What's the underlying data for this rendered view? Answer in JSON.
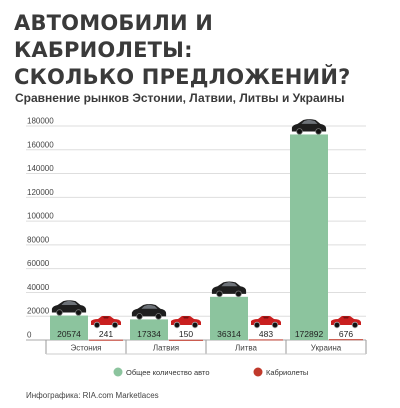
{
  "header": {
    "title_line1": "АВТОМОБИЛИ И КАБРИОЛЕТЫ:",
    "title_line2": "СКОЛЬКО ПРЕДЛОЖЕНИЙ?",
    "subtitle": "Сравнение рынков Эстонии, Латвии, Литвы и Украины"
  },
  "chart_data": {
    "type": "bar",
    "categories": [
      "Эстония",
      "Латвия",
      "Литва",
      "Украина"
    ],
    "series": [
      {
        "name": "Общее количество авто",
        "values": [
          20574,
          17334,
          36314,
          172892
        ]
      },
      {
        "name": "Кабриолеты",
        "values": [
          241,
          150,
          483,
          676
        ]
      }
    ],
    "ylim": [
      0,
      180000
    ],
    "yticks": [
      0,
      20000,
      40000,
      60000,
      80000,
      100000,
      120000,
      140000,
      160000,
      180000
    ],
    "grid": true,
    "legend": "bottom",
    "colors": [
      "#8cc49e",
      "#c0392b"
    ],
    "icons": {
      "total": "black-sedan-icon",
      "convertible": "red-convertible-icon"
    }
  },
  "footer": {
    "credit": "Инфографика: RIA.com Marketlaces"
  }
}
